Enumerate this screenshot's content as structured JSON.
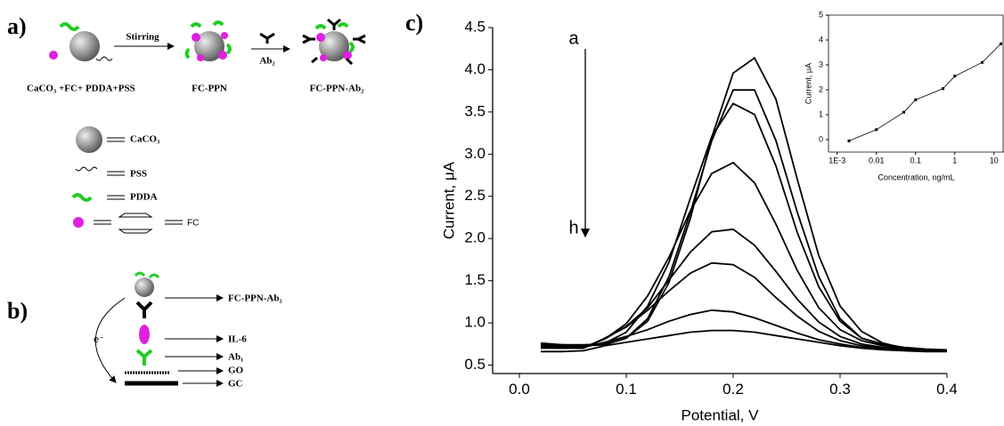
{
  "panel_labels": [
    "a)",
    "b)",
    "c)"
  ],
  "scheme_a": {
    "step1": "Stirring",
    "step2": "Ab₂",
    "components": "CaCO₃ +FC+ PDDA+PSS",
    "product1": "FC-PPN",
    "product2": "FC-PPN-Ab₂",
    "legend": [
      "CaCO₃",
      "PSS",
      "PDDA",
      "FC"
    ]
  },
  "scheme_b": {
    "electron": "e⁻",
    "layers": [
      "FC-PPN-Ab₂",
      "IL-6",
      "Ab₁",
      "GO",
      "GC"
    ]
  },
  "chart_data": [
    {
      "type": "line",
      "xlabel": "Potential, V",
      "ylabel": "Current, μA",
      "annotations": [
        "a",
        "h"
      ],
      "x": [
        0.02,
        0.04,
        0.06,
        0.08,
        0.1,
        0.12,
        0.14,
        0.16,
        0.18,
        0.2,
        0.22,
        0.24,
        0.26,
        0.28,
        0.3,
        0.32,
        0.34,
        0.36,
        0.38,
        0.4
      ],
      "series": [
        {
          "color": "#000000",
          "values": [
            0.75,
            0.74,
            0.74,
            0.75,
            0.82,
            1.02,
            1.48,
            2.24,
            3.2,
            3.96,
            4.14,
            3.65,
            2.7,
            1.8,
            1.2,
            0.9,
            0.76,
            0.7,
            0.68,
            0.68
          ]
        },
        {
          "color": "#000000",
          "values": [
            0.76,
            0.74,
            0.73,
            0.74,
            0.82,
            1.05,
            1.55,
            2.31,
            3.16,
            3.76,
            3.76,
            3.16,
            2.31,
            1.55,
            1.05,
            0.82,
            0.74,
            0.7,
            0.68,
            0.68
          ]
        },
        {
          "color": "#000000",
          "values": [
            0.74,
            0.73,
            0.72,
            0.76,
            0.89,
            1.2,
            1.72,
            2.48,
            3.21,
            3.6,
            3.47,
            2.86,
            2.07,
            1.43,
            1.02,
            0.82,
            0.75,
            0.71,
            0.69,
            0.68
          ]
        },
        {
          "color": "#000000",
          "values": [
            0.73,
            0.72,
            0.71,
            0.81,
            0.99,
            1.32,
            1.78,
            2.33,
            2.77,
            2.9,
            2.66,
            2.17,
            1.62,
            1.18,
            0.92,
            0.79,
            0.73,
            0.7,
            0.68,
            0.67
          ]
        },
        {
          "color": "#000000",
          "values": [
            0.72,
            0.71,
            0.7,
            0.81,
            0.96,
            1.18,
            1.51,
            1.84,
            2.08,
            2.11,
            1.92,
            1.61,
            1.28,
            1.01,
            0.84,
            0.75,
            0.71,
            0.69,
            0.68,
            0.67
          ]
        },
        {
          "color": "#000000",
          "values": [
            0.71,
            0.7,
            0.7,
            0.82,
            0.95,
            1.15,
            1.38,
            1.59,
            1.71,
            1.69,
            1.54,
            1.3,
            1.08,
            0.9,
            0.79,
            0.73,
            0.7,
            0.68,
            0.67,
            0.67
          ]
        },
        {
          "color": "#000000",
          "values": [
            0.7,
            0.7,
            0.71,
            0.77,
            0.84,
            0.92,
            1.02,
            1.1,
            1.15,
            1.13,
            1.06,
            0.97,
            0.88,
            0.8,
            0.75,
            0.71,
            0.69,
            0.68,
            0.67,
            0.67
          ]
        },
        {
          "color": "#000000",
          "values": [
            0.66,
            0.66,
            0.67,
            0.73,
            0.77,
            0.81,
            0.85,
            0.89,
            0.91,
            0.91,
            0.89,
            0.85,
            0.81,
            0.77,
            0.73,
            0.7,
            0.68,
            0.67,
            0.66,
            0.66
          ]
        }
      ],
      "xlim": [
        -0.025,
        0.4
      ],
      "ylim": [
        0.4,
        4.5
      ],
      "xticks": [
        {
          "value": 0,
          "label": "0.0"
        },
        0.1,
        0.2,
        0.3,
        0.4
      ],
      "yticks": [
        0.5,
        {
          "value": 1,
          "label": "1.0"
        },
        1.5,
        {
          "value": 2,
          "label": "2.0"
        },
        2.5,
        {
          "value": 3,
          "label": "3.0"
        },
        3.5,
        {
          "value": 4,
          "label": "4.0"
        },
        4.5
      ]
    },
    {
      "type": "scatter",
      "xlabel": "Concentration, ng/mL",
      "ylabel": "Current, μA",
      "xscale": "log",
      "connect": true,
      "x": [
        0.002,
        0.01,
        0.05,
        0.1,
        0.5,
        1,
        5,
        15
      ],
      "series": [
        {
          "color": "#000000",
          "values": [
            -0.05,
            0.4,
            1.1,
            1.6,
            2.05,
            2.55,
            3.1,
            3.85
          ]
        }
      ],
      "xlim": [
        0.0006,
        18
      ],
      "ylim": [
        -0.5,
        5
      ],
      "xticks": [
        {
          "value": 0.001,
          "label": "1E-3"
        },
        0.01,
        0.1,
        1,
        10
      ],
      "yticks": [
        0,
        1,
        2,
        3,
        4,
        5
      ]
    }
  ]
}
